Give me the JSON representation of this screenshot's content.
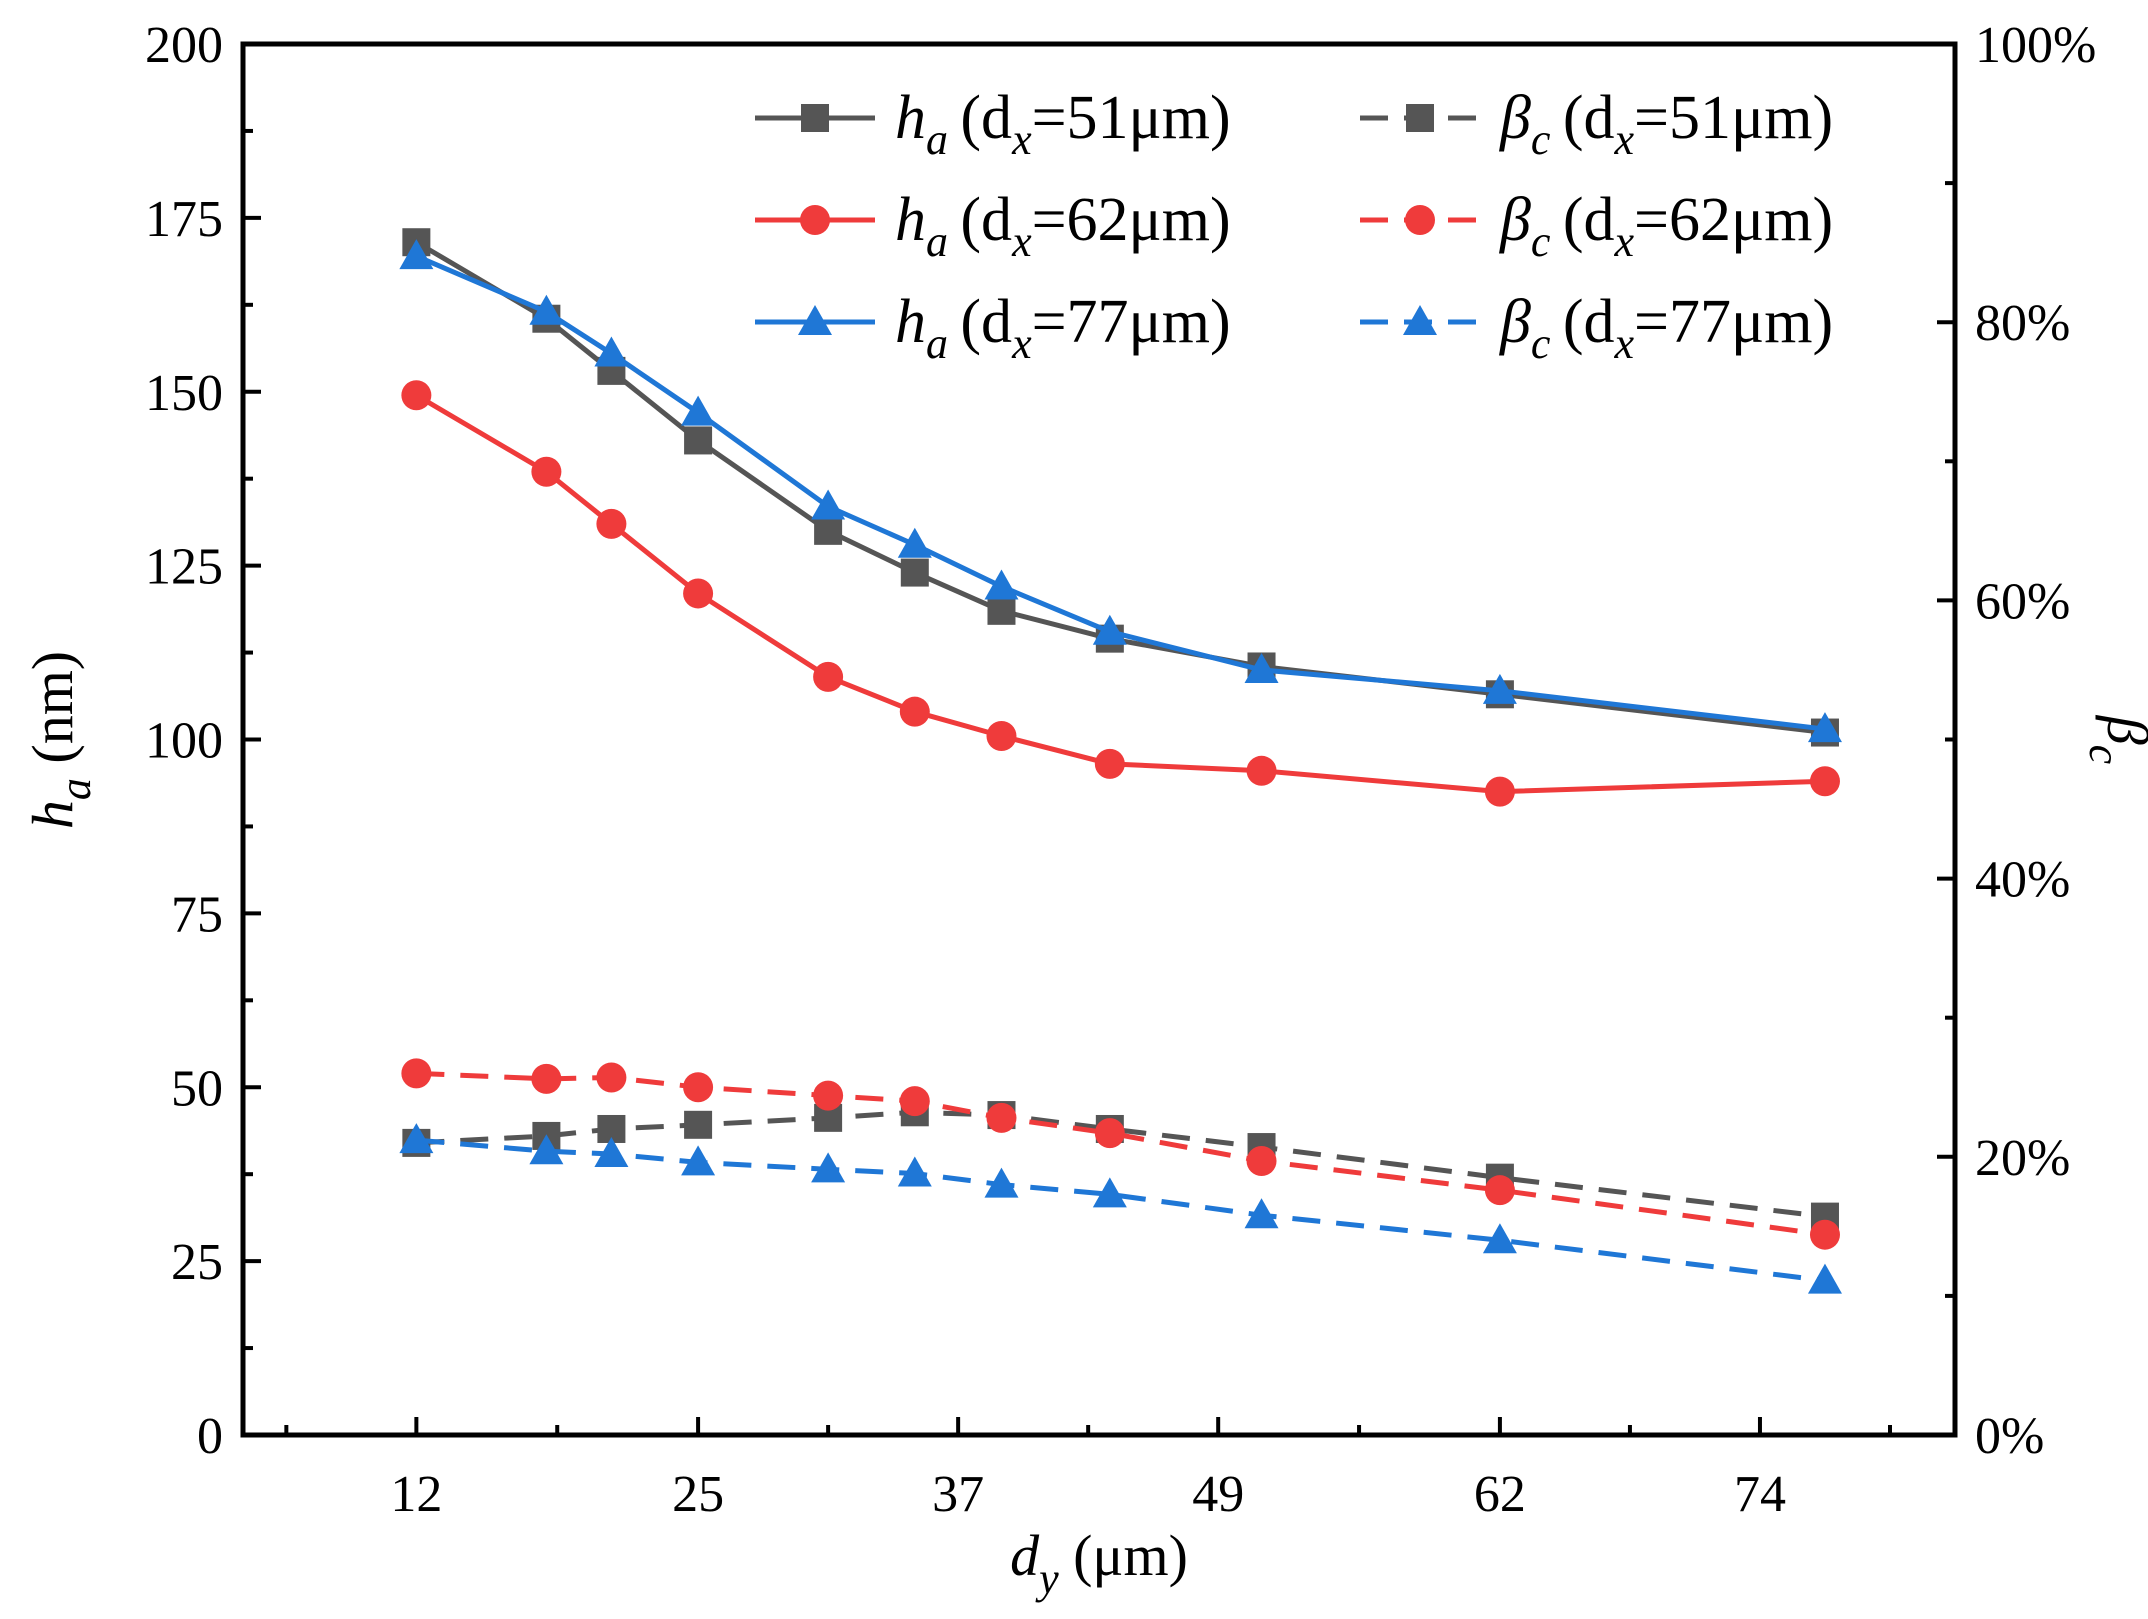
{
  "chart_data": {
    "type": "line",
    "x": [
      12,
      18,
      21,
      25,
      31,
      35,
      39,
      44,
      51,
      62,
      77
    ],
    "xlabel": {
      "main": "d",
      "sub": "y",
      "unit": " (μm)"
    },
    "ylabel_left": {
      "main": "h",
      "sub": "a",
      "unit": " (nm)"
    },
    "ylabel_right": {
      "main": "β",
      "sub": "c"
    },
    "xticks": [
      "12",
      "25",
      "37",
      "49",
      "62",
      "74"
    ],
    "yticks_left": [
      "0",
      "25",
      "50",
      "75",
      "100",
      "125",
      "150",
      "175",
      "200"
    ],
    "yticks_right": [
      "0%",
      "20%",
      "40%",
      "60%",
      "80%",
      "100%"
    ],
    "ylim_left": [
      0,
      200
    ],
    "ylim_right": [
      0,
      100
    ],
    "series": [
      {
        "name": "h_a (d_x=51μm)",
        "label_main": "h",
        "label_sub": "a",
        "label_param": "(d",
        "label_param_sub": "x",
        "label_value": "=51μm)",
        "axis": "left",
        "style": "solid",
        "marker": "square",
        "color": "#555555",
        "values": [
          171.5,
          160.5,
          153,
          143,
          130,
          124,
          118.5,
          114.5,
          110.5,
          106.5,
          101
        ]
      },
      {
        "name": "h_a (d_x=62μm)",
        "label_main": "h",
        "label_sub": "a",
        "label_param": "(d",
        "label_param_sub": "x",
        "label_value": "=62μm)",
        "axis": "left",
        "style": "solid",
        "marker": "circle",
        "color": "#ef3b3b",
        "values": [
          149.5,
          138.5,
          131,
          121,
          109,
          104,
          100.5,
          96.5,
          95.5,
          92.5,
          94
        ]
      },
      {
        "name": "h_a (d_x=77μm)",
        "label_main": "h",
        "label_sub": "a",
        "label_param": "(d",
        "label_param_sub": "x",
        "label_value": "=77μm)",
        "axis": "left",
        "style": "solid",
        "marker": "triangle",
        "color": "#1f77d6",
        "values": [
          169.5,
          161.5,
          155.5,
          147,
          133.5,
          128,
          122,
          115.5,
          110,
          107,
          101.5
        ]
      },
      {
        "name": "β_c (d_x=51μm)",
        "label_main": "β",
        "label_sub": "c",
        "label_param": "(d",
        "label_param_sub": "x",
        "label_value": "=51μm)",
        "axis": "right",
        "style": "dashed",
        "marker": "square",
        "color": "#555555",
        "values": [
          21,
          21.5,
          22,
          22.3,
          22.8,
          23.2,
          23,
          22,
          20.7,
          18.5,
          15.7
        ]
      },
      {
        "name": "β_c (d_x=62μm)",
        "label_main": "β",
        "label_sub": "c",
        "label_param": "(d",
        "label_param_sub": "x",
        "label_value": "=62μm)",
        "axis": "right",
        "style": "dashed",
        "marker": "circle",
        "color": "#ef3b3b",
        "values": [
          26,
          25.6,
          25.7,
          25,
          24.4,
          24,
          22.8,
          21.7,
          19.7,
          17.6,
          14.4
        ]
      },
      {
        "name": "β_c (d_x=77μm)",
        "label_main": "β",
        "label_sub": "c",
        "label_param": "(d",
        "label_param_sub": "x",
        "label_value": "=77μm)",
        "axis": "right",
        "style": "dashed",
        "marker": "triangle",
        "color": "#1f77d6",
        "values": [
          21.2,
          20.4,
          20.2,
          19.6,
          19.1,
          18.8,
          18,
          17.3,
          15.8,
          14,
          11.1
        ]
      }
    ],
    "legend_placement": "top-right"
  }
}
